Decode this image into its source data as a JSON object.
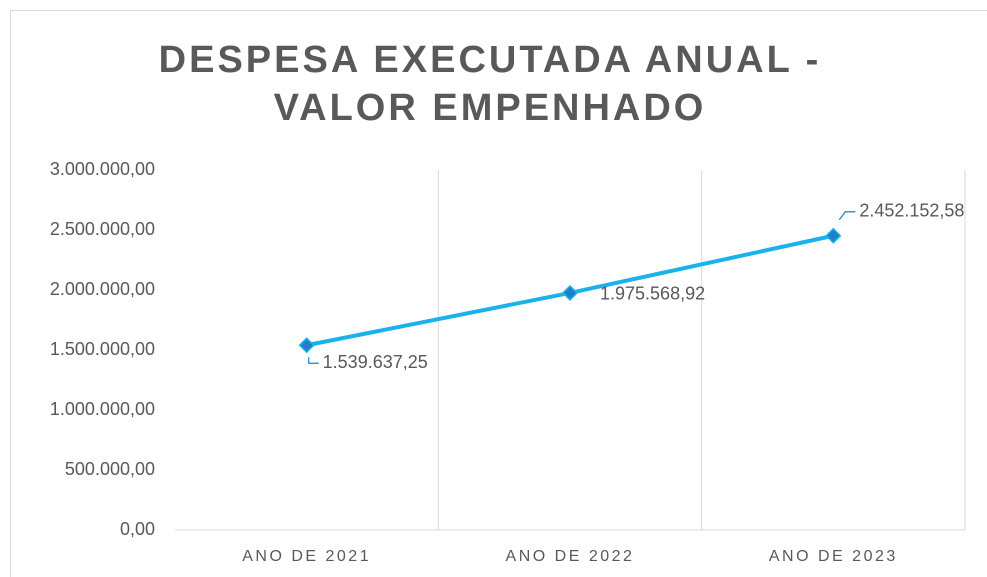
{
  "chart_data": {
    "type": "line",
    "title": "DESPESA EXECUTADA ANUAL - VALOR EMPENHADO",
    "categories": [
      "ANO DE 2021",
      "ANO DE 2022",
      "ANO DE 2023"
    ],
    "values": [
      1539637.25,
      1975568.92,
      2452152.58
    ],
    "value_labels": [
      "1.539.637,25",
      "1.975.568,92",
      "2.452.152,58"
    ],
    "color": "#1ab2ea",
    "marker_color": "#1f80c8",
    "ylim": [
      0,
      3000000
    ],
    "yticks": [
      {
        "value": 0,
        "label": "0,00"
      },
      {
        "value": 500000,
        "label": "500.000,00"
      },
      {
        "value": 1000000,
        "label": "1.000.000,00"
      },
      {
        "value": 1500000,
        "label": "1.500.000,00"
      },
      {
        "value": 2000000,
        "label": "2.000.000,00"
      },
      {
        "value": 2500000,
        "label": "2.500.000,00"
      },
      {
        "value": 3000000,
        "label": "3.000.000,00"
      }
    ]
  }
}
